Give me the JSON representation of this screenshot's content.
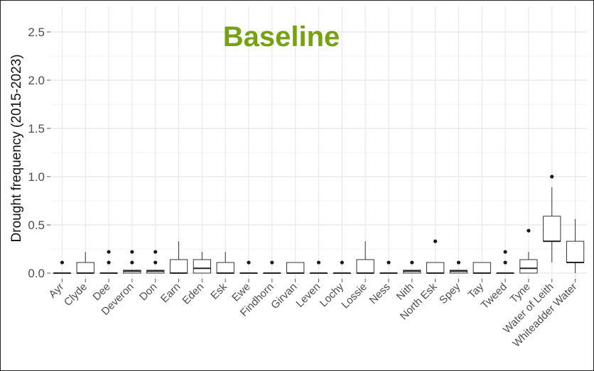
{
  "chart_data": {
    "type": "box",
    "title": "Baseline",
    "title_color": "#77a112",
    "xlabel": "",
    "ylabel": "Drought frequency (2015-2023)",
    "ylim": [
      -0.05,
      2.6
    ],
    "yticks": [
      "0.0",
      "0.5",
      "1.0",
      "1.5",
      "2.0",
      "2.5"
    ],
    "grid": true,
    "categories": [
      "Ayr",
      "Clyde",
      "Dee",
      "Deveron",
      "Don",
      "Earn",
      "Eden",
      "Esk",
      "Ewe",
      "Findhorn",
      "Girvan",
      "Leven",
      "Lochy",
      "Lossie",
      "Ness",
      "Nith",
      "North Esk",
      "Spey",
      "Tay",
      "Tweed",
      "Tyne",
      "Water of Leith",
      "Whiteadder Water"
    ],
    "boxes": [
      {
        "q1": 0,
        "median": 0,
        "q3": 0,
        "whisker_low": 0,
        "whisker_high": 0,
        "outliers": [
          0.11
        ]
      },
      {
        "q1": 0,
        "median": 0,
        "q3": 0.11,
        "whisker_low": 0,
        "whisker_high": 0.22,
        "outliers": []
      },
      {
        "q1": 0,
        "median": 0,
        "q3": 0,
        "whisker_low": 0,
        "whisker_high": 0,
        "outliers": [
          0.11,
          0.22
        ]
      },
      {
        "q1": 0,
        "median": 0.02,
        "q3": 0.03,
        "whisker_low": 0,
        "whisker_high": 0.03,
        "outliers": [
          0.11,
          0.22
        ]
      },
      {
        "q1": 0,
        "median": 0.02,
        "q3": 0.03,
        "whisker_low": 0,
        "whisker_high": 0.03,
        "outliers": [
          0.11,
          0.22
        ]
      },
      {
        "q1": 0,
        "median": 0,
        "q3": 0.14,
        "whisker_low": 0,
        "whisker_high": 0.33,
        "outliers": []
      },
      {
        "q1": 0,
        "median": 0.05,
        "q3": 0.14,
        "whisker_low": 0,
        "whisker_high": 0.22,
        "outliers": []
      },
      {
        "q1": 0,
        "median": 0,
        "q3": 0.11,
        "whisker_low": 0,
        "whisker_high": 0.22,
        "outliers": []
      },
      {
        "q1": 0,
        "median": 0,
        "q3": 0,
        "whisker_low": 0,
        "whisker_high": 0,
        "outliers": [
          0.11
        ]
      },
      {
        "q1": 0,
        "median": 0,
        "q3": 0,
        "whisker_low": 0,
        "whisker_high": 0,
        "outliers": [
          0.11
        ]
      },
      {
        "q1": 0,
        "median": 0,
        "q3": 0.11,
        "whisker_low": 0,
        "whisker_high": 0.11,
        "outliers": []
      },
      {
        "q1": 0,
        "median": 0,
        "q3": 0,
        "whisker_low": 0,
        "whisker_high": 0,
        "outliers": [
          0.11
        ]
      },
      {
        "q1": 0,
        "median": 0,
        "q3": 0,
        "whisker_low": 0,
        "whisker_high": 0,
        "outliers": [
          0.11
        ]
      },
      {
        "q1": 0,
        "median": 0,
        "q3": 0.14,
        "whisker_low": 0,
        "whisker_high": 0.33,
        "outliers": []
      },
      {
        "q1": 0,
        "median": 0,
        "q3": 0,
        "whisker_low": 0,
        "whisker_high": 0,
        "outliers": [
          0.11
        ]
      },
      {
        "q1": 0,
        "median": 0.02,
        "q3": 0.03,
        "whisker_low": 0,
        "whisker_high": 0.03,
        "outliers": [
          0.11
        ]
      },
      {
        "q1": 0,
        "median": 0,
        "q3": 0.11,
        "whisker_low": 0,
        "whisker_high": 0.11,
        "outliers": [
          0.33
        ]
      },
      {
        "q1": 0,
        "median": 0.02,
        "q3": 0.03,
        "whisker_low": 0,
        "whisker_high": 0.03,
        "outliers": [
          0.11
        ]
      },
      {
        "q1": 0,
        "median": 0,
        "q3": 0.11,
        "whisker_low": 0,
        "whisker_high": 0.11,
        "outliers": []
      },
      {
        "q1": 0,
        "median": 0,
        "q3": 0,
        "whisker_low": 0,
        "whisker_high": 0,
        "outliers": [
          0.11,
          0.22
        ]
      },
      {
        "q1": 0,
        "median": 0.05,
        "q3": 0.14,
        "whisker_low": 0,
        "whisker_high": 0.22,
        "outliers": [
          0.44
        ]
      },
      {
        "q1": 0.33,
        "median": 0.33,
        "q3": 0.59,
        "whisker_low": 0.11,
        "whisker_high": 0.89,
        "outliers": [
          1.0
        ]
      },
      {
        "q1": 0.11,
        "median": 0.11,
        "q3": 0.33,
        "whisker_low": 0,
        "whisker_high": 0.56,
        "outliers": []
      }
    ]
  }
}
